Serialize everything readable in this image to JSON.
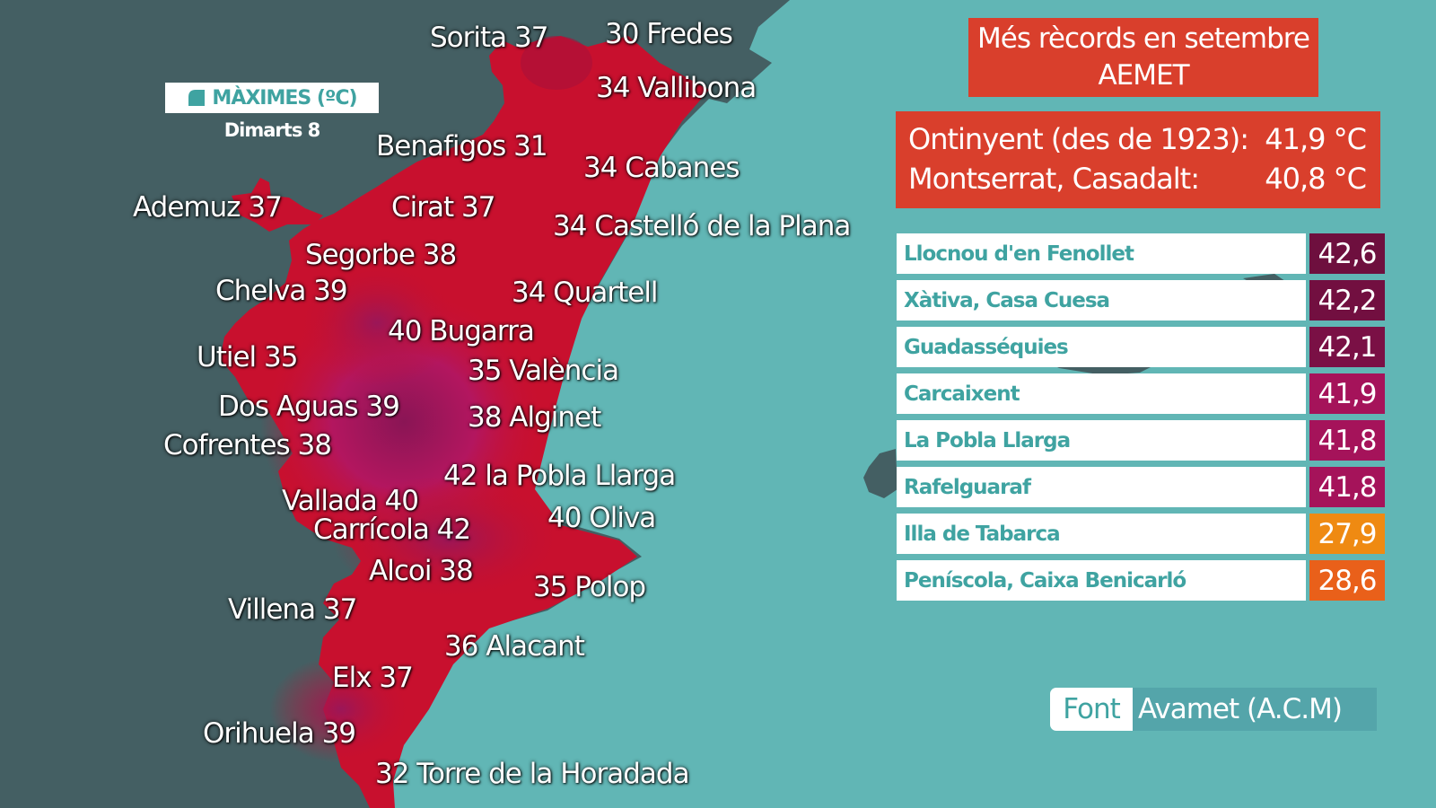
{
  "legend": {
    "title": "MÀXIMES (ºC)",
    "date": "Dimarts 8"
  },
  "places": [
    {
      "id": "sorita",
      "text": "Sorita 37"
    },
    {
      "id": "fredes",
      "text": "30 Fredes"
    },
    {
      "id": "vallibona",
      "text": "34 Vallibona"
    },
    {
      "id": "benafigos",
      "text": "Benafigos 31"
    },
    {
      "id": "cabanes",
      "text": "34 Cabanes"
    },
    {
      "id": "ademuz",
      "text": "Ademuz 37"
    },
    {
      "id": "cirat",
      "text": "Cirat 37"
    },
    {
      "id": "castello",
      "text": "34 Castelló de la Plana"
    },
    {
      "id": "segorbe",
      "text": "Segorbe 38"
    },
    {
      "id": "chelva",
      "text": "Chelva 39"
    },
    {
      "id": "quartell",
      "text": "34 Quartell"
    },
    {
      "id": "bugarra",
      "text": "40 Bugarra"
    },
    {
      "id": "utiel",
      "text": "Utiel 35"
    },
    {
      "id": "valencia",
      "text": "35 València"
    },
    {
      "id": "dosaguas",
      "text": "Dos Aguas 39"
    },
    {
      "id": "alginet",
      "text": "38 Alginet"
    },
    {
      "id": "cofrentes",
      "text": "Cofrentes 38"
    },
    {
      "id": "poblallarga",
      "text": "42 la Pobla Llarga"
    },
    {
      "id": "vallada",
      "text": "Vallada 40"
    },
    {
      "id": "oliva",
      "text": "40 Oliva"
    },
    {
      "id": "carricola",
      "text": "Carrícola 42"
    },
    {
      "id": "alcoi",
      "text": "Alcoi 38"
    },
    {
      "id": "polop",
      "text": "35 Polop"
    },
    {
      "id": "villena",
      "text": "Villena 37"
    },
    {
      "id": "alacant",
      "text": "36 Alacant"
    },
    {
      "id": "elx",
      "text": "Elx 37"
    },
    {
      "id": "orihuela",
      "text": "Orihuela 39"
    },
    {
      "id": "torre",
      "text": "32 Torre de la Horadada"
    }
  ],
  "records": {
    "header_line1": "Més rècords en setembre",
    "header_line2": "AEMET",
    "rows": [
      {
        "label": "Ontinyent (des de 1923):",
        "value": "41,9 °C"
      },
      {
        "label": "Montserrat, Casadalt:",
        "value": "40,8 °C"
      }
    ]
  },
  "stations": [
    {
      "name": "Llocnou d'en Fenollet",
      "value": "42,6",
      "color": "#6e0f3e"
    },
    {
      "name": "Xàtiva, Casa Cuesa",
      "value": "42,2",
      "color": "#720f40"
    },
    {
      "name": "Guadasséquies",
      "value": "42,1",
      "color": "#7a1045"
    },
    {
      "name": "Carcaixent",
      "value": "41,9",
      "color": "#a5135a"
    },
    {
      "name": "La Pobla Llarga",
      "value": "41,8",
      "color": "#a5135a"
    },
    {
      "name": "Rafelguaraf",
      "value": "41,8",
      "color": "#a5135a"
    },
    {
      "name": "Illa de Tabarca",
      "value": "27,9",
      "color": "#ef8a12"
    },
    {
      "name": "Peníscola, Caixa Benicarló",
      "value": "28,6",
      "color": "#e9601a"
    }
  ],
  "source": {
    "label": "Font",
    "value": "Avamet (A.C.M)"
  },
  "colors": {
    "sea": "#61b6b5",
    "land_outside": "#445f63",
    "map_red": "#c8102e",
    "map_magenta": "#b8135a",
    "accent": "#3fa3a1",
    "record_red": "#d93f2c"
  }
}
